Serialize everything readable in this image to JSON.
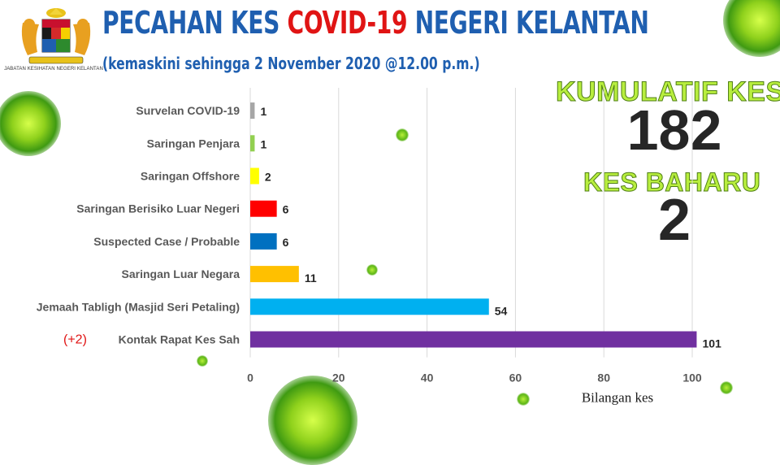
{
  "header": {
    "title_part1": "PECAHAN KES ",
    "title_part2": "COVID-19",
    "title_part3": " NEGERI KELANTAN",
    "subtitle": "(kemaskini sehingga 2 November 2020 @12.00 p.m.)",
    "logo_caption": "JABATAN KESIHATAN NEGERI KELANTAN"
  },
  "stats": {
    "cumulative_label": "KUMULATIF KES",
    "cumulative_value": "182",
    "new_label": "KES BAHARU",
    "new_value": "2"
  },
  "colors": {
    "title_blue": "#1f5fb0",
    "title_red": "#e01414",
    "stat_label_green": "#b8ee3e"
  },
  "chart_data": {
    "type": "bar",
    "orientation": "horizontal",
    "categories": [
      "Survelan COVID-19",
      "Saringan Penjara",
      "Saringan Offshore",
      "Saringan Berisiko Luar Negeri",
      "Suspected Case / Probable",
      "Saringan Luar Negara",
      "Jemaah Tabligh (Masjid Seri Petaling)",
      "Kontak Rapat Kes Sah"
    ],
    "values": [
      1,
      1,
      2,
      6,
      6,
      11,
      54,
      101
    ],
    "bar_colors": [
      "#a6a6a6",
      "#92d050",
      "#ffff00",
      "#ff0000",
      "#0070c0",
      "#ffc000",
      "#00b0f0",
      "#7030a0"
    ],
    "annotations": [
      {
        "category": "Kontak Rapat Kes Sah",
        "text": "(+2)",
        "color": "#e01414"
      }
    ],
    "xlabel": "Bilangan kes",
    "ylabel": "",
    "xlim": [
      0,
      100
    ],
    "xticks": [
      0,
      20,
      40,
      60,
      80,
      100
    ],
    "grid": true,
    "legend": "none"
  }
}
